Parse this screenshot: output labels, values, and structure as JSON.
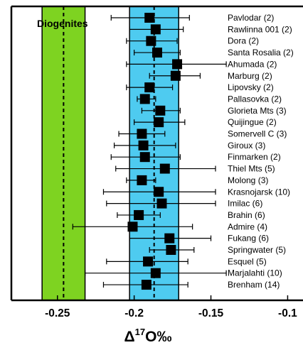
{
  "chart_data": {
    "type": "scatter",
    "xlabel_parts": {
      "symbol": "Δ",
      "superscript": "17",
      "rest": "O‰"
    },
    "xlim": [
      -0.28,
      -0.09
    ],
    "x_ticks": [
      -0.25,
      -0.2,
      -0.15,
      -0.1
    ],
    "x_tick_labels": [
      "-0.25",
      "-0.2",
      "-0.15",
      "-0.1"
    ],
    "bands": [
      {
        "label": "Diogenites",
        "x_min": -0.26,
        "x_max": -0.232,
        "center": -0.246,
        "color": "#7ed321"
      },
      {
        "label": "",
        "x_min": -0.203,
        "x_max": -0.171,
        "center": -0.187,
        "color": "#4ecbf0"
      }
    ],
    "points": [
      {
        "label": "Pavlodar (2)",
        "x": -0.19,
        "xerr_low": -0.215,
        "xerr_high": -0.164
      },
      {
        "label": "Rawlinna 001 (2)",
        "x": -0.186,
        "xerr_low": -0.203,
        "xerr_high": -0.168
      },
      {
        "label": "Dora (2)",
        "x": -0.189,
        "xerr_low": -0.205,
        "xerr_high": -0.172
      },
      {
        "label": "Santa Rosalia (2)",
        "x": -0.185,
        "xerr_low": -0.2,
        "xerr_high": -0.17
      },
      {
        "label": "Ahumada (2)",
        "x": -0.172,
        "xerr_low": -0.205,
        "xerr_high": -0.14
      },
      {
        "label": "Marburg (2)",
        "x": -0.173,
        "xerr_low": -0.19,
        "xerr_high": -0.157
      },
      {
        "label": "Lipovsky (2)",
        "x": -0.19,
        "xerr_low": -0.205,
        "xerr_high": -0.175
      },
      {
        "label": "Pallasovka (2)",
        "x": -0.193,
        "xerr_low": -0.198,
        "xerr_high": -0.186
      },
      {
        "label": "Glorieta Mts (3)",
        "x": -0.183,
        "xerr_low": -0.195,
        "xerr_high": -0.17
      },
      {
        "label": "Quijingue (2)",
        "x": -0.184,
        "xerr_low": -0.2,
        "xerr_high": -0.167
      },
      {
        "label": "Somervell C (3)",
        "x": -0.195,
        "xerr_low": -0.21,
        "xerr_high": -0.18
      },
      {
        "label": "Giroux (3)",
        "x": -0.194,
        "xerr_low": -0.213,
        "xerr_high": -0.173
      },
      {
        "label": "Finmarken (2)",
        "x": -0.193,
        "xerr_low": -0.215,
        "xerr_high": -0.17
      },
      {
        "label": "Thiel Mts (5)",
        "x": -0.18,
        "xerr_low": -0.212,
        "xerr_high": -0.147
      },
      {
        "label": "Molong (3)",
        "x": -0.195,
        "xerr_low": -0.205,
        "xerr_high": -0.186
      },
      {
        "label": "Krasnojarsk (10)",
        "x": -0.184,
        "xerr_low": -0.22,
        "xerr_high": -0.147
      },
      {
        "label": "Imilac (6)",
        "x": -0.182,
        "xerr_low": -0.218,
        "xerr_high": -0.147
      },
      {
        "label": "Brahin (6)",
        "x": -0.197,
        "xerr_low": -0.211,
        "xerr_high": -0.183
      },
      {
        "label": "Admire (4)",
        "x": -0.201,
        "xerr_low": -0.24,
        "xerr_high": -0.162
      },
      {
        "label": "Fukang (6)",
        "x": -0.177,
        "xerr_low": -0.203,
        "xerr_high": -0.15
      },
      {
        "label": "Springwater (5)",
        "x": -0.176,
        "xerr_low": -0.19,
        "xerr_high": -0.161
      },
      {
        "label": "Esquel (5)",
        "x": -0.191,
        "xerr_low": -0.218,
        "xerr_high": -0.165
      },
      {
        "label": "Marjalahti (10)",
        "x": -0.186,
        "xerr_low": -0.232,
        "xerr_high": -0.14
      },
      {
        "label": "Brenham (14)",
        "x": -0.192,
        "xerr_low": -0.22,
        "xerr_high": -0.165
      }
    ],
    "grid": false,
    "colors": {
      "marker": "#000000",
      "errorbar": "#000000",
      "frame": "#000000",
      "median_line": "#000000"
    }
  }
}
